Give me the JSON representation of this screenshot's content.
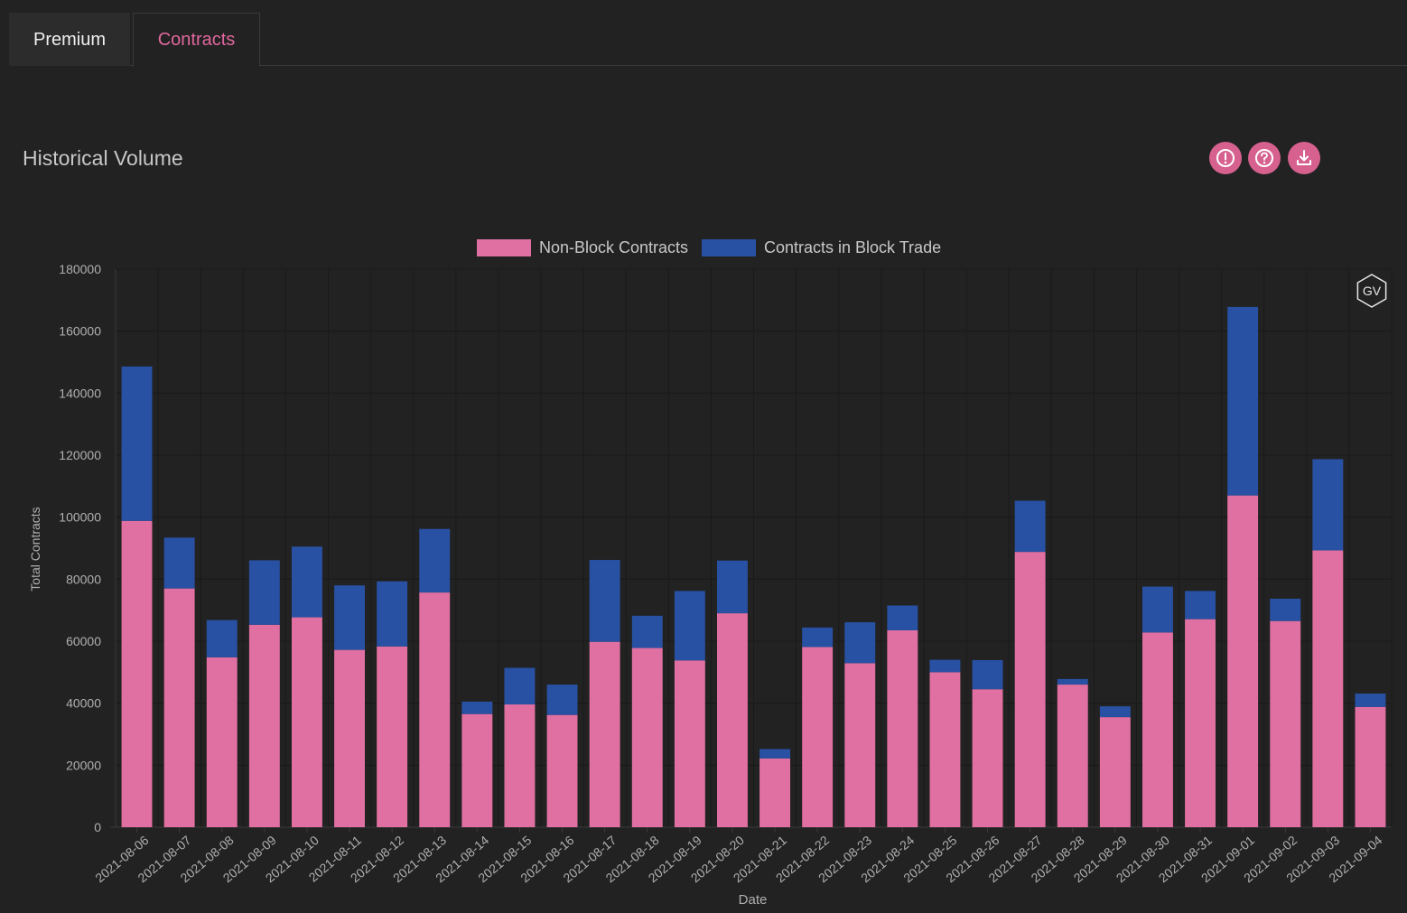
{
  "tabs": [
    {
      "label": "Premium",
      "active": false
    },
    {
      "label": "Contracts",
      "active": true
    }
  ],
  "section": {
    "title": "Historical Volume",
    "actions": [
      {
        "icon": "info-icon"
      },
      {
        "icon": "help-icon"
      },
      {
        "icon": "download-icon"
      }
    ]
  },
  "colors": {
    "accent": "#e0679d",
    "non_block": "#e170a2",
    "block": "#2851a3",
    "background": "#222222"
  },
  "chart_data": {
    "type": "bar",
    "stacked": true,
    "title": "",
    "xlabel": "Date",
    "ylabel": "Total Contracts",
    "ylim": [
      0,
      180000
    ],
    "yticks": [
      0,
      20000,
      40000,
      60000,
      80000,
      100000,
      120000,
      140000,
      160000,
      180000
    ],
    "legend_position": "top",
    "grid": true,
    "watermark": "GV",
    "categories": [
      "2021-08-06",
      "2021-08-07",
      "2021-08-08",
      "2021-08-09",
      "2021-08-10",
      "2021-08-11",
      "2021-08-12",
      "2021-08-13",
      "2021-08-14",
      "2021-08-15",
      "2021-08-16",
      "2021-08-17",
      "2021-08-18",
      "2021-08-19",
      "2021-08-20",
      "2021-08-21",
      "2021-08-22",
      "2021-08-23",
      "2021-08-24",
      "2021-08-25",
      "2021-08-26",
      "2021-08-27",
      "2021-08-28",
      "2021-08-29",
      "2021-08-30",
      "2021-08-31",
      "2021-09-01",
      "2021-09-02",
      "2021-09-03",
      "2021-09-04"
    ],
    "series": [
      {
        "name": "Non-Block Contracts",
        "color": "#e170a2",
        "values": [
          98800,
          77000,
          54800,
          65300,
          67700,
          57200,
          58300,
          75700,
          36500,
          39600,
          36200,
          59800,
          57800,
          53800,
          69000,
          22200,
          58100,
          52900,
          63500,
          50000,
          44500,
          88800,
          46000,
          35500,
          62800,
          67100,
          107000,
          66500,
          89300,
          38800
        ]
      },
      {
        "name": "Contracts in Block Trade",
        "color": "#2851a3",
        "values": [
          49800,
          16400,
          12000,
          20800,
          22800,
          20800,
          21000,
          20500,
          4000,
          11800,
          9800,
          26400,
          10400,
          22400,
          17000,
          3000,
          6300,
          13200,
          8000,
          4000,
          9400,
          16500,
          1800,
          3500,
          14800,
          9100,
          60800,
          7200,
          29400,
          4300
        ]
      }
    ]
  }
}
